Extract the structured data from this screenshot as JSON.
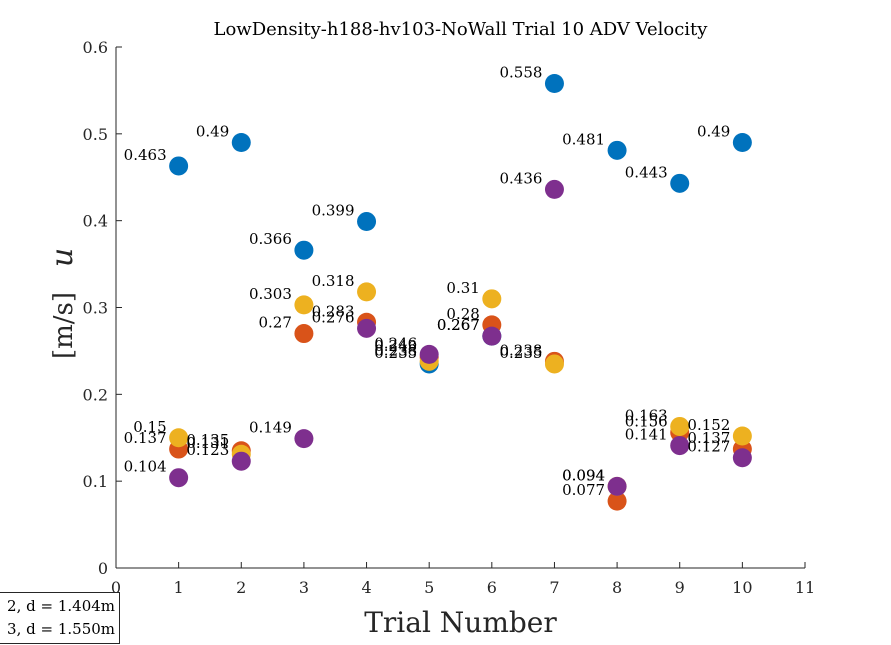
{
  "chart_data": {
    "type": "scatter",
    "title": "LowDensity-h188-hv103-NoWall Trial 10 ADV Velocity",
    "xlabel": "Trial Number",
    "ylabel": "u",
    "ylabel_unit": "[m/s]",
    "xlim": [
      0,
      11
    ],
    "ylim": [
      0,
      0.6
    ],
    "xticks": [
      0,
      1,
      2,
      3,
      4,
      5,
      6,
      7,
      8,
      9,
      10,
      11
    ],
    "yticks": [
      0,
      0.1,
      0.2,
      0.3,
      0.4,
      0.5,
      0.6
    ],
    "grid": false,
    "series": [
      {
        "color": "#0072BD",
        "points": [
          {
            "x": 1,
            "y": 0.463,
            "label": "0.463"
          },
          {
            "x": 2,
            "y": 0.49,
            "label": "0.49"
          },
          {
            "x": 3,
            "y": 0.366,
            "label": "0.366"
          },
          {
            "x": 4,
            "y": 0.399,
            "label": "0.399"
          },
          {
            "x": 5,
            "y": 0.235,
            "label": "0.235"
          },
          {
            "x": 6,
            "y": 0.267,
            "label": "0.267"
          },
          {
            "x": 7,
            "y": 0.558,
            "label": "0.558"
          },
          {
            "x": 8,
            "y": 0.481,
            "label": "0.481"
          },
          {
            "x": 9,
            "y": 0.443,
            "label": "0.443"
          },
          {
            "x": 10,
            "y": 0.49,
            "label": "0.49"
          }
        ]
      },
      {
        "color": "#D95319",
        "points": [
          {
            "x": 1,
            "y": 0.137,
            "label": "0.137"
          },
          {
            "x": 2,
            "y": 0.135,
            "label": "0.135"
          },
          {
            "x": 3,
            "y": 0.27,
            "label": "0.27"
          },
          {
            "x": 4,
            "y": 0.283,
            "label": "0.283"
          },
          {
            "x": 5,
            "y": 0.243,
            "label": "0.243"
          },
          {
            "x": 6,
            "y": 0.28,
            "label": "0.28"
          },
          {
            "x": 7,
            "y": 0.238,
            "label": "0.238"
          },
          {
            "x": 8,
            "y": 0.077,
            "label": "0.077"
          },
          {
            "x": 9,
            "y": 0.156,
            "label": "0.156"
          },
          {
            "x": 10,
            "y": 0.137,
            "label": "0.137"
          }
        ]
      },
      {
        "color": "#EDB120",
        "points": [
          {
            "x": 1,
            "y": 0.15,
            "label": "0.15"
          },
          {
            "x": 2,
            "y": 0.131,
            "label": "0.131"
          },
          {
            "x": 3,
            "y": 0.303,
            "label": "0.303"
          },
          {
            "x": 4,
            "y": 0.318,
            "label": "0.318"
          },
          {
            "x": 5,
            "y": 0.238,
            "label": "0.238"
          },
          {
            "x": 6,
            "y": 0.31,
            "label": "0.31"
          },
          {
            "x": 7,
            "y": 0.235,
            "label": "0.235"
          },
          {
            "x": 8,
            "y": 0.094,
            "label": "0.094"
          },
          {
            "x": 9,
            "y": 0.163,
            "label": "0.163"
          },
          {
            "x": 10,
            "y": 0.152,
            "label": "0.152"
          }
        ]
      },
      {
        "color": "#7E2F8E",
        "points": [
          {
            "x": 1,
            "y": 0.104,
            "label": "0.104"
          },
          {
            "x": 2,
            "y": 0.123,
            "label": "0.123"
          },
          {
            "x": 3,
            "y": 0.149,
            "label": "0.149"
          },
          {
            "x": 4,
            "y": 0.276,
            "label": "0.276"
          },
          {
            "x": 5,
            "y": 0.246,
            "label": "0.246"
          },
          {
            "x": 6,
            "y": 0.267,
            "label": "0.267"
          },
          {
            "x": 7,
            "y": 0.436,
            "label": "0.436"
          },
          {
            "x": 8,
            "y": 0.094,
            "label": "0.094"
          },
          {
            "x": 9,
            "y": 0.141,
            "label": "0.141"
          },
          {
            "x": 10,
            "y": 0.127,
            "label": "0.127"
          }
        ]
      }
    ],
    "legend": {
      "placement": "bottom-left",
      "entries": [
        "2, d = 1.404m",
        "3, d = 1.550m"
      ]
    }
  }
}
